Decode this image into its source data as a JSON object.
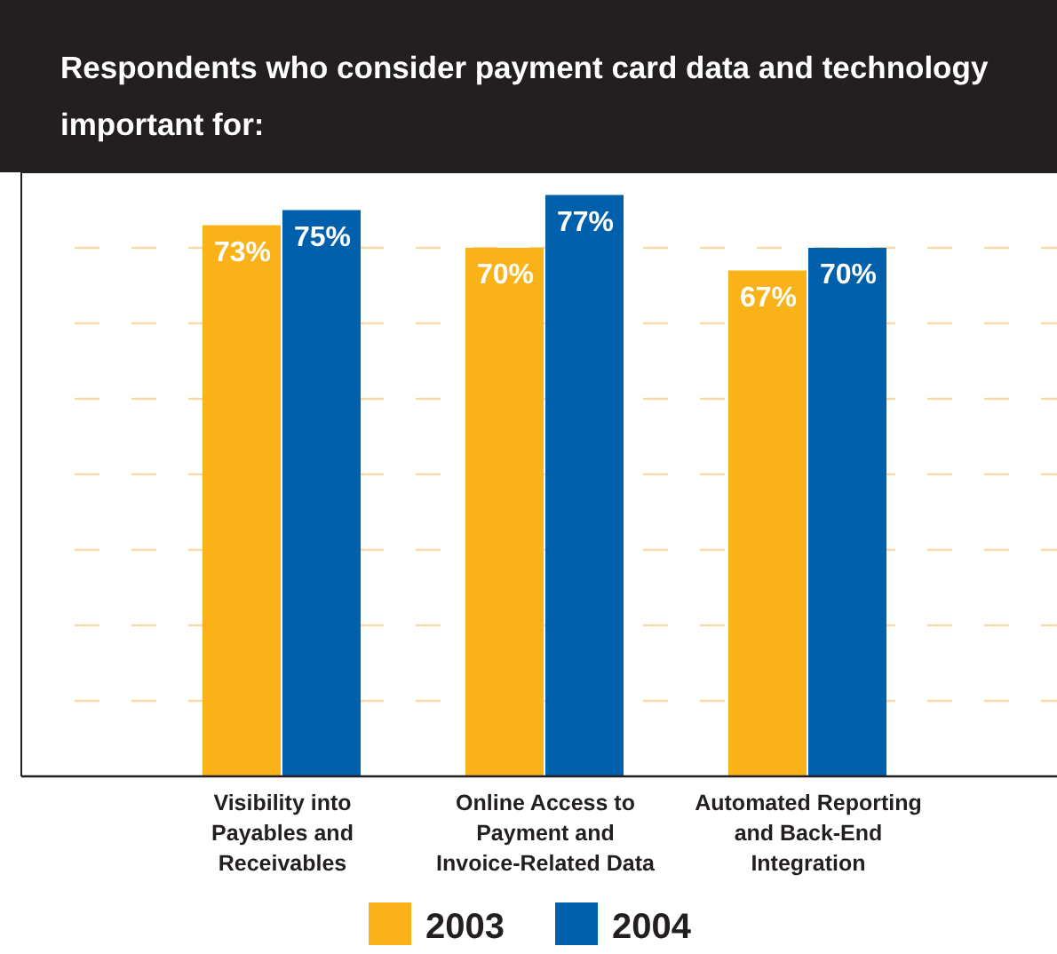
{
  "chart_data": {
    "type": "bar",
    "title": "Respondents who consider payment card data and technology important for:",
    "categories": [
      "Visibility into Payables and Receivables",
      "Online Access to Payment and Invoice-Related Data",
      "Automated Reporting and Back-End Integration"
    ],
    "series": [
      {
        "name": "2003",
        "color": "#f9b318",
        "values": [
          73,
          70,
          67
        ],
        "value_labels": [
          "73%",
          "70%",
          "67%"
        ]
      },
      {
        "name": "2004",
        "color": "#0060ac",
        "values": [
          75,
          77,
          70
        ],
        "value_labels": [
          "75%",
          "77%",
          "70%"
        ]
      }
    ],
    "ylim": [
      0,
      80
    ],
    "yticks": [
      {
        "value": 10,
        "label": null
      },
      {
        "value": 20,
        "label": null
      },
      {
        "value": 30,
        "label": null
      },
      {
        "value": 40,
        "label": null
      },
      {
        "value": 50,
        "label": null
      },
      {
        "value": 60,
        "label": null
      },
      {
        "value": 70,
        "label": null
      }
    ],
    "tick_labels": "x",
    "grid": "y",
    "legend": "bottom"
  }
}
